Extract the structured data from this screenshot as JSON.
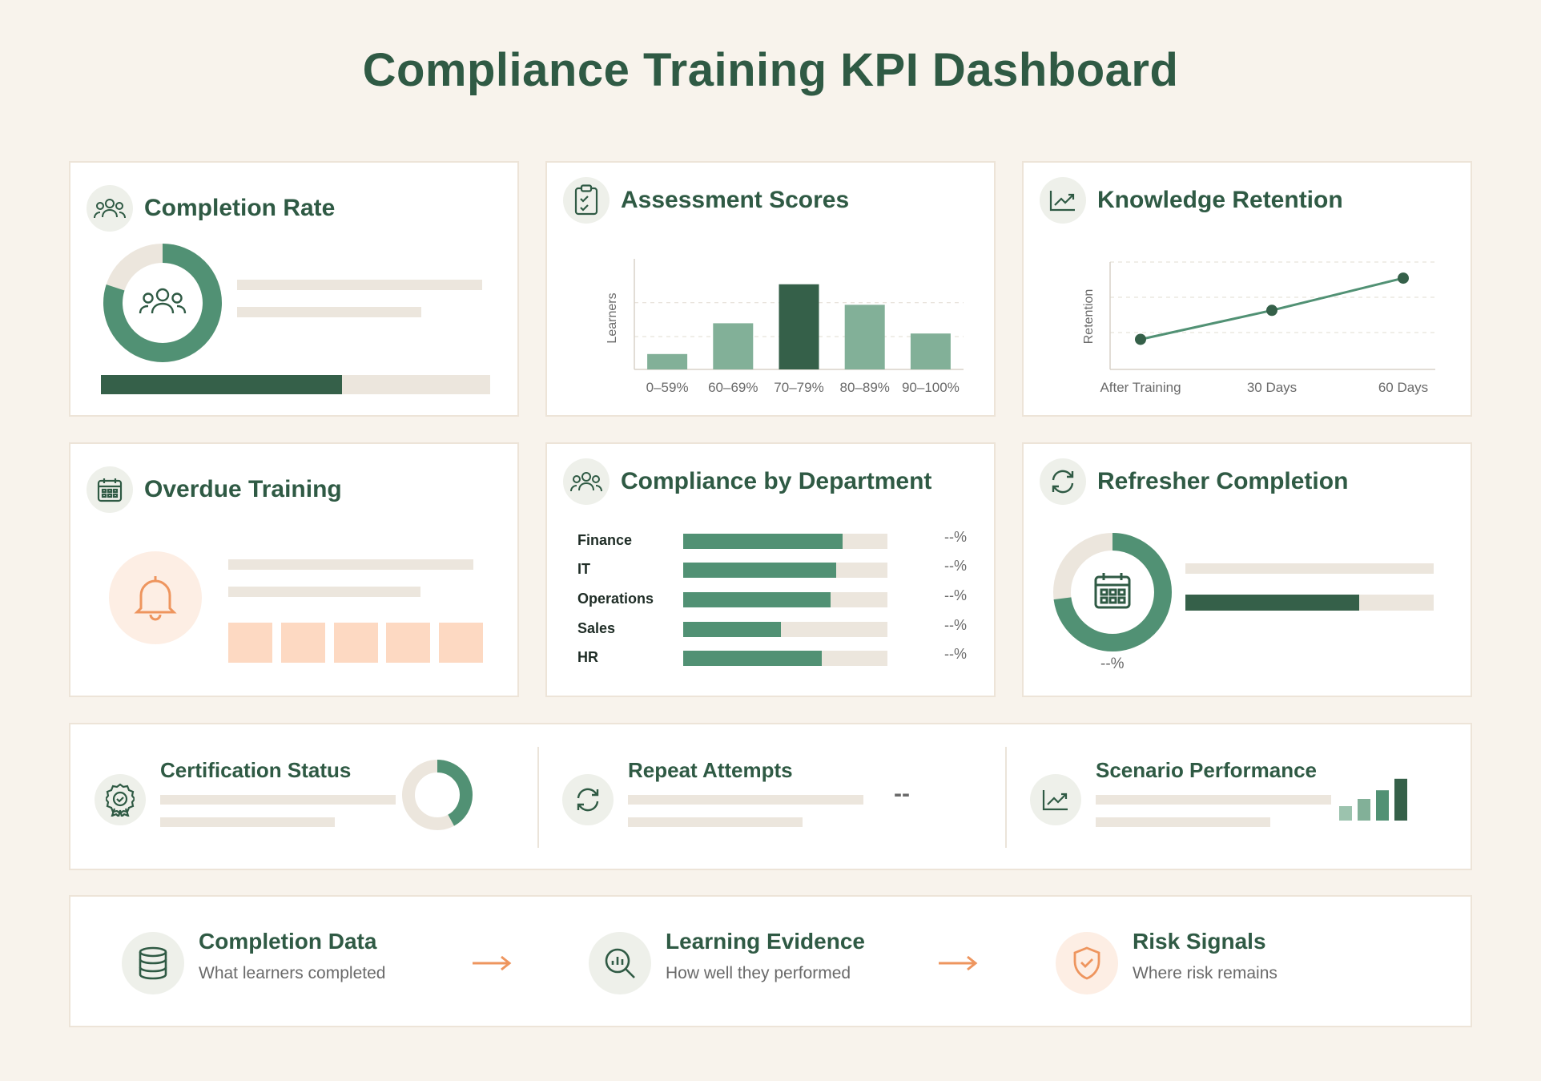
{
  "page": {
    "title": "Compliance Training KPI Dashboard"
  },
  "colors": {
    "background": "#f8f3ec",
    "primary_dark": "#356049",
    "primary": "#519174",
    "primary_light": "#82b098",
    "neutral": "#ece6dd",
    "accent_peach": "#fdd9c2",
    "accent_orange": "#ee955e"
  },
  "cards": {
    "completion_rate": {
      "title": "Completion Rate",
      "icon": "users-icon"
    },
    "assessment_scores": {
      "title": "Assessment Scores",
      "icon": "clipboard-check-icon"
    },
    "knowledge_retention": {
      "title": "Knowledge Retention",
      "icon": "trend-up-icon"
    },
    "overdue_training": {
      "title": "Overdue Training",
      "icon": "calendar-icon",
      "alert_icon": "bell-icon"
    },
    "compliance_by_department": {
      "title": "Compliance by Department",
      "icon": "users-icon"
    },
    "refresher_completion": {
      "title": "Refresher Completion",
      "icon": "refresh-icon",
      "center_icon": "calendar-icon",
      "value": "--%"
    }
  },
  "kpi_strip": {
    "certification_status": {
      "title": "Certification Status",
      "icon": "badge-icon"
    },
    "repeat_attempts": {
      "title": "Repeat Attempts",
      "icon": "refresh-icon",
      "value": "--"
    },
    "scenario_performance": {
      "title": "Scenario Performance",
      "icon": "trend-up-icon"
    }
  },
  "flow": [
    {
      "title": "Completion Data",
      "subtitle": "What learners completed",
      "icon": "database-icon"
    },
    {
      "title": "Learning Evidence",
      "subtitle": "How well they performed",
      "icon": "search-chart-icon"
    },
    {
      "title": "Risk Signals",
      "subtitle": "Where risk remains",
      "icon": "shield-check-icon"
    }
  ],
  "chart_data": [
    {
      "id": "completion-rate-donut",
      "type": "pie",
      "values": [
        0.8,
        0.2
      ],
      "note_progress": 0.62
    },
    {
      "id": "assessment-scores",
      "type": "bar",
      "title": "Assessment Scores",
      "ylabel": "Learners",
      "xlabel": "",
      "categories": [
        "0–59%",
        "60–69%",
        "70–79%",
        "80–89%",
        "90–100%"
      ],
      "values": [
        15,
        45,
        83,
        63,
        35
      ],
      "ylim": [
        0,
        100
      ],
      "highlight_index": 2,
      "grid": true
    },
    {
      "id": "knowledge-retention",
      "type": "line",
      "title": "Knowledge Retention",
      "ylabel": "Retention",
      "xlabel": "",
      "categories": [
        "After Training",
        "30 Days",
        "60 Days"
      ],
      "values": [
        28,
        55,
        85
      ],
      "ylim": [
        0,
        100
      ],
      "grid": true
    },
    {
      "id": "compliance-by-department",
      "type": "bar",
      "title": "Compliance by Department",
      "categories": [
        "Finance",
        "IT",
        "Operations",
        "Sales",
        "HR"
      ],
      "values": [
        78,
        75,
        72,
        48,
        68
      ],
      "value_labels": [
        "--%",
        "--%",
        "--%",
        "--%",
        "--%"
      ],
      "xlim": [
        0,
        100
      ]
    },
    {
      "id": "refresher-completion-donut",
      "type": "pie",
      "values": [
        0.73,
        0.27
      ],
      "note_progress": 0.7
    },
    {
      "id": "certification-donut",
      "type": "pie",
      "values": [
        0.42,
        0.58
      ]
    },
    {
      "id": "scenario-performance-bars",
      "type": "bar",
      "values": [
        20,
        30,
        42,
        58
      ],
      "ylim": [
        0,
        60
      ]
    }
  ]
}
